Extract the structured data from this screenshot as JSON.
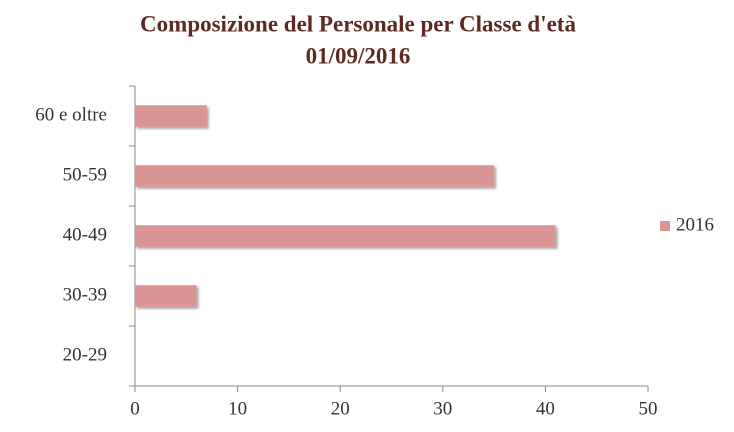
{
  "chart_data": {
    "type": "bar",
    "orientation": "horizontal",
    "title": "Composizione del Personale per Classe d'età",
    "subtitle": "01/09/2016",
    "categories": [
      "60 e oltre",
      "50-59",
      "40-49",
      "30-39",
      "20-29"
    ],
    "series": [
      {
        "name": "2016",
        "color": "#d99594",
        "values": [
          7,
          35,
          41,
          6,
          0
        ]
      }
    ],
    "xlim": [
      0,
      50
    ],
    "xticks": [
      0,
      10,
      20,
      30,
      40,
      50
    ],
    "grid": false,
    "legend": "right"
  }
}
